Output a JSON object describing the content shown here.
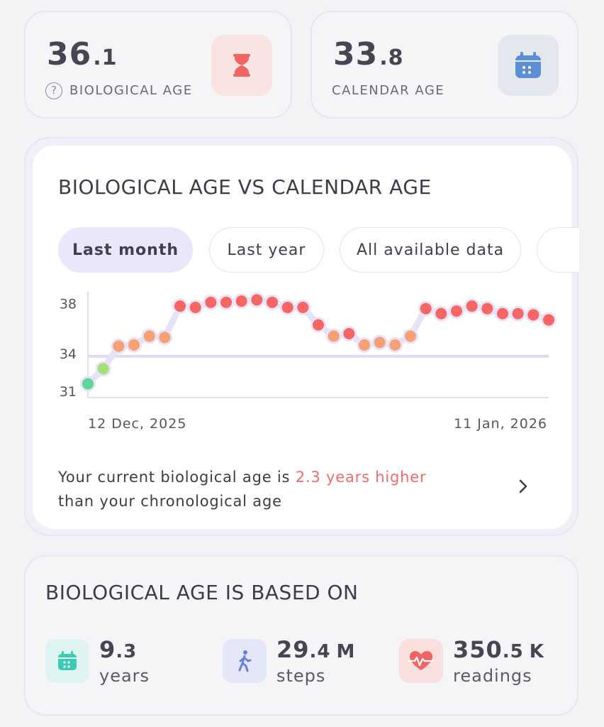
{
  "bio_age": {
    "int": "36",
    "dec": ".1",
    "label": "BIOLOGICAL AGE",
    "help": "?"
  },
  "cal_age": {
    "int": "33",
    "dec": ".8",
    "label": "CALENDAR AGE"
  },
  "chart_card": {
    "title": "BIOLOGICAL AGE VS CALENDAR AGE",
    "tabs": [
      {
        "label": "Last month",
        "active": true
      },
      {
        "label": "Last year",
        "active": false
      },
      {
        "label": "All available data",
        "active": false
      }
    ],
    "summary_prefix": "Your current biological age is ",
    "summary_highlight": "2.3 years higher",
    "summary_suffix": "than your chronological age"
  },
  "chart_data": {
    "type": "scatter",
    "x_start": "12 Dec, 2025",
    "x_end": "11 Jan, 2026",
    "ylim": [
      30.5,
      39
    ],
    "yticks": [
      31,
      34,
      38
    ],
    "reference_line": 33.8,
    "series": [
      {
        "values": [
          31.6,
          32.8,
          34.6,
          34.7,
          35.4,
          35.3,
          37.8,
          37.7,
          38.1,
          38.1,
          38.2,
          38.3,
          38.1,
          37.7,
          37.7,
          36.3,
          35.4,
          35.6,
          34.7,
          34.9,
          34.7,
          35.4,
          37.6,
          37.2,
          37.4,
          37.8,
          37.6,
          37.2,
          37.2,
          37.1,
          36.7
        ]
      }
    ],
    "point_colors": [
      "#5ed69a",
      "#a6df7c",
      "#f6a074",
      "#f6a074",
      "#f6a074",
      "#f6a074",
      "#f86565",
      "#f86565",
      "#f86565",
      "#f86565",
      "#f86565",
      "#f86565",
      "#f86565",
      "#f86565",
      "#f86565",
      "#f86565",
      "#f6a074",
      "#f86565",
      "#f6a074",
      "#f6a074",
      "#f6a074",
      "#f6a074",
      "#f86565",
      "#f86565",
      "#f86565",
      "#f86565",
      "#f86565",
      "#f86565",
      "#f86565",
      "#f86565",
      "#f86565"
    ]
  },
  "based_on": {
    "title": "BIOLOGICAL AGE IS BASED ON",
    "items": [
      {
        "int": "9",
        "dec": ".3",
        "unit_suffix": "",
        "label": "years",
        "icon": "calendar-icon"
      },
      {
        "int": "29",
        "dec": ".4",
        "unit_suffix": "M",
        "label": "steps",
        "icon": "walking-icon"
      },
      {
        "int": "350",
        "dec": ".5",
        "unit_suffix": "K",
        "label": "readings",
        "icon": "heart-pulse-icon"
      }
    ]
  },
  "colors": {
    "accent_red": "#ef6b6b",
    "bio_tile": "#f9e4e2",
    "cal_tile": "#e3e8ee",
    "calendar_blue": "#5b8fd4",
    "teal": "#3ec9b5",
    "walk_blue": "#6a7ee0",
    "line": "#dddcf0"
  }
}
